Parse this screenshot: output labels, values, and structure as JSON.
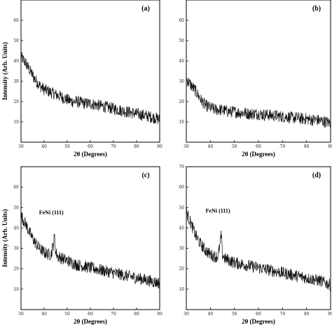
{
  "chart_data": [
    {
      "type": "line",
      "panel_label": "(a)",
      "xlabel": "2θ (Degrees)",
      "ylabel": "Intensity (Arb. Units)",
      "xlim": [
        30,
        90
      ],
      "ylim": [
        0,
        70
      ],
      "xticks": [
        30,
        40,
        50,
        60,
        70,
        80,
        90
      ],
      "yticks": [
        10,
        20,
        30,
        40,
        50,
        60
      ],
      "annotation": null,
      "series": [
        {
          "values_desc": "decay",
          "x": [
            30,
            32,
            34,
            36,
            38,
            40,
            42,
            44,
            46,
            48,
            50,
            52,
            54,
            56,
            58,
            60,
            62,
            64,
            66,
            68,
            70,
            72,
            74,
            76,
            78,
            80,
            82,
            84,
            86,
            88,
            90
          ],
          "y": [
            42,
            39,
            35,
            31,
            28,
            26,
            25,
            24,
            23,
            22,
            21,
            20,
            20,
            19.5,
            19,
            19,
            18.5,
            18,
            17.5,
            17,
            16.5,
            16,
            15.5,
            15,
            14.5,
            14,
            13.5,
            13,
            12.5,
            12,
            11
          ]
        }
      ]
    },
    {
      "type": "line",
      "panel_label": "(b)",
      "xlabel": "2θ (Degrees)",
      "ylabel": "",
      "xlim": [
        30,
        90
      ],
      "ylim": [
        0,
        70
      ],
      "xticks": [
        30,
        40,
        50,
        60,
        70,
        80,
        90
      ],
      "yticks": [
        10,
        20,
        30,
        40,
        50,
        60
      ],
      "annotation": null,
      "series": [
        {
          "x": [
            30,
            32,
            34,
            36,
            38,
            40,
            42,
            44,
            46,
            48,
            50,
            52,
            54,
            56,
            58,
            60,
            62,
            64,
            66,
            68,
            70,
            72,
            74,
            76,
            78,
            80,
            82,
            84,
            86,
            88,
            90
          ],
          "y": [
            31,
            28,
            25,
            21,
            18,
            17,
            16,
            16,
            15.5,
            15,
            15,
            14.5,
            14.5,
            14,
            14,
            14,
            13.5,
            13.5,
            13,
            13,
            12.5,
            12.5,
            12,
            12,
            11.5,
            11.5,
            11,
            11,
            10.5,
            10,
            9.5
          ]
        }
      ]
    },
    {
      "type": "line",
      "panel_label": "(c)",
      "xlabel": "2θ (Degrees)",
      "ylabel": "Intensity (Arb. Units)",
      "xlim": [
        30,
        90
      ],
      "ylim": [
        0,
        70
      ],
      "xticks": [
        30,
        40,
        50,
        60,
        70,
        80,
        90
      ],
      "yticks": [
        10,
        20,
        30,
        40,
        50,
        60
      ],
      "annotation": {
        "text": "FeNi (111)",
        "x": 44.3,
        "y": 37
      },
      "series": [
        {
          "x": [
            30,
            32,
            34,
            36,
            38,
            40,
            42,
            43,
            44,
            44.5,
            45,
            46,
            48,
            50,
            52,
            54,
            56,
            58,
            60,
            62,
            64,
            66,
            68,
            70,
            72,
            74,
            76,
            78,
            80,
            82,
            84,
            86,
            88,
            90
          ],
          "y": [
            46,
            42,
            37,
            33,
            30,
            28,
            27,
            27,
            32,
            36,
            28,
            26,
            25,
            24,
            23,
            22,
            21.5,
            21,
            20.5,
            20,
            19.5,
            19,
            18.5,
            18,
            17.5,
            17,
            16.5,
            16,
            15.5,
            15,
            14.5,
            14,
            13.5,
            13
          ]
        }
      ]
    },
    {
      "type": "line",
      "panel_label": "(d)",
      "xlabel": "2θ (Degrees)",
      "ylabel": "",
      "xlim": [
        30,
        90
      ],
      "ylim": [
        0,
        70
      ],
      "xticks": [
        30,
        40,
        50,
        60,
        70,
        80,
        90
      ],
      "yticks": [
        10,
        20,
        30,
        40,
        50,
        60,
        70
      ],
      "annotation": {
        "text": "FeNi (111)",
        "x": 44.3,
        "y": 38
      },
      "series": [
        {
          "x": [
            30,
            32,
            34,
            36,
            38,
            40,
            42,
            43,
            44,
            44.5,
            45,
            46,
            48,
            50,
            52,
            54,
            56,
            58,
            60,
            62,
            64,
            66,
            68,
            70,
            72,
            74,
            76,
            78,
            80,
            82,
            84,
            86,
            88,
            90
          ],
          "y": [
            48,
            42,
            36,
            32,
            29,
            27,
            26,
            26,
            31,
            37,
            27,
            25,
            24,
            23,
            22.5,
            22,
            21.5,
            21,
            20.5,
            20,
            19.5,
            19,
            18.5,
            18,
            17.5,
            17,
            16.5,
            16,
            15.5,
            15,
            14.5,
            14,
            13,
            12
          ]
        }
      ]
    }
  ]
}
